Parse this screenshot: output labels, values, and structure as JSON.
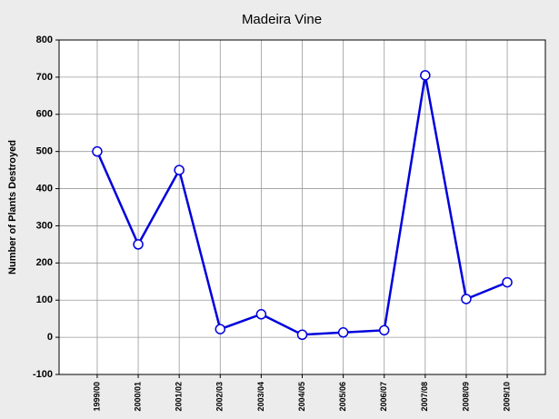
{
  "chart_data": {
    "type": "line",
    "title": "Madeira Vine",
    "y_label": "Number of Plants Destroyed",
    "categories": [
      "1999/00",
      "2000/01",
      "2001/02",
      "2002/03",
      "2003/04",
      "2004/05",
      "2005/06",
      "2006/07",
      "2007/08",
      "2008/09",
      "2009/10"
    ],
    "series": [
      {
        "name": "Number of Plants Destroyed",
        "color": "#0000dd",
        "values": [
          500,
          250,
          450,
          22,
          62,
          7,
          13,
          19,
          705,
          103,
          148
        ]
      }
    ],
    "ylim": [
      -100,
      800
    ],
    "yticks": [
      -100,
      0,
      100,
      200,
      300,
      400,
      500,
      600,
      700,
      800
    ],
    "grid": true
  }
}
